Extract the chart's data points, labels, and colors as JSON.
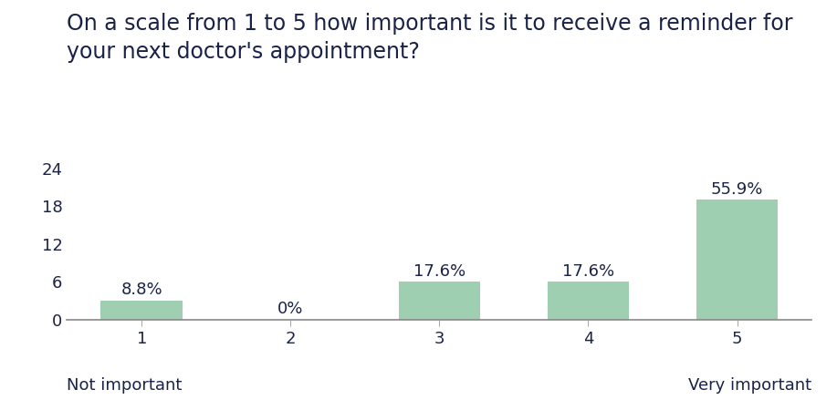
{
  "title_line1": "On a scale from 1 to 5 how important is it to receive a reminder for",
  "title_line2": "your next doctor's appointment?",
  "categories": [
    1,
    2,
    3,
    4,
    5
  ],
  "values": [
    3,
    0,
    6,
    6,
    19
  ],
  "percentages": [
    "8.8%",
    "0%",
    "17.6%",
    "17.6%",
    "55.9%"
  ],
  "bar_color": "#9ecfb0",
  "title_color": "#1a2347",
  "tick_color": "#1a2347",
  "label_color": "#1a2347",
  "annotation_color": "#1a2347",
  "xlabel_left": "Not important",
  "xlabel_right": "Very important",
  "yticks": [
    0,
    6,
    12,
    18,
    24
  ],
  "ylim": [
    0,
    26
  ],
  "background_color": "#ffffff",
  "title_fontsize": 17,
  "tick_fontsize": 13,
  "annotation_fontsize": 13,
  "xlabel_fontsize": 13,
  "bar_width": 0.55
}
